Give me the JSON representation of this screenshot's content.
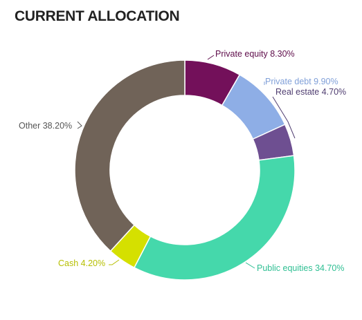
{
  "header": {
    "title": "CURRENT ALLOCATION"
  },
  "chart_data": {
    "type": "pie",
    "variant": "donut",
    "title": "CURRENT ALLOCATION",
    "unit": "%",
    "slices": [
      {
        "label": "Private equity",
        "value": 8.3,
        "text": "Private equity 8.30%",
        "color": "#73105a"
      },
      {
        "label": "Private debt",
        "value": 9.9,
        "text": "Private debt 9.90%",
        "color": "#8eaee6"
      },
      {
        "label": "Real estate",
        "value": 4.7,
        "text": "Real estate 4.70%",
        "color": "#6e4f91"
      },
      {
        "label": "Public equities",
        "value": 34.7,
        "text": "Public equities 34.70%",
        "color": "#45d8ab"
      },
      {
        "label": "Cash",
        "value": 4.2,
        "text": "Cash 4.20%",
        "color": "#d5e000"
      },
      {
        "label": "Other",
        "value": 38.2,
        "text": "Other 38.20%",
        "color": "#706358"
      }
    ],
    "label_colors": {
      "Private equity": "#5e0c4a",
      "Private debt": "#7f9fd8",
      "Real estate": "#4f3d70",
      "Public equities": "#2fbf93",
      "Cash": "#b6bf00",
      "Other": "#555555"
    },
    "legend": "none",
    "start_angle_deg": 0,
    "direction": "clockwise"
  }
}
